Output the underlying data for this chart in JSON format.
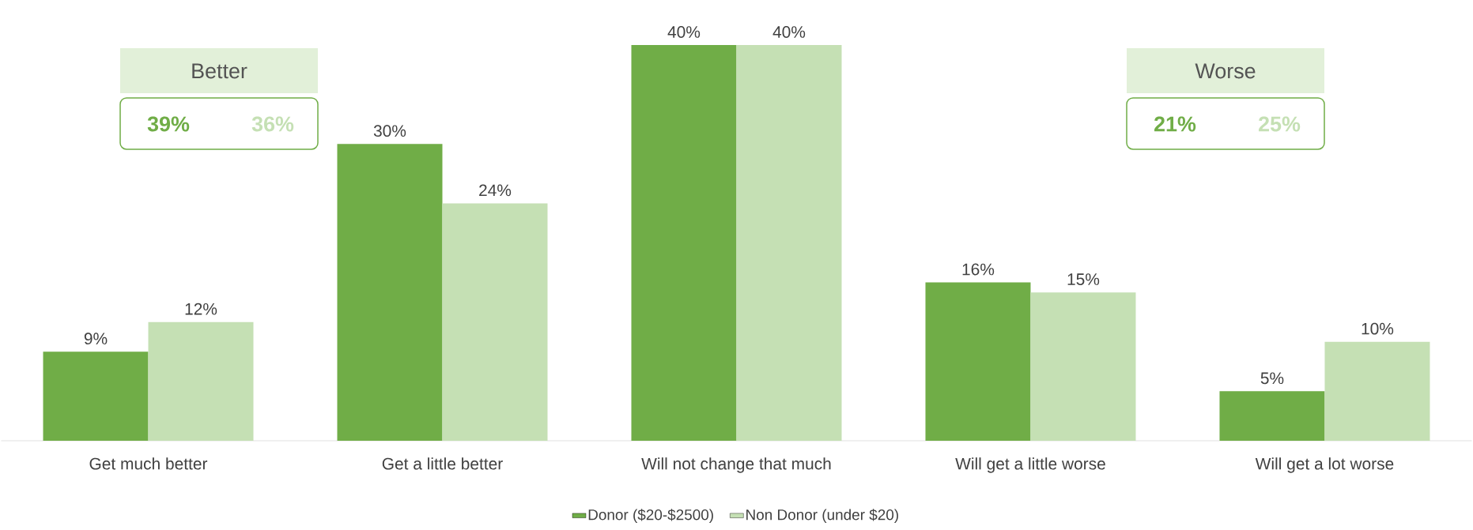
{
  "chart_data": {
    "type": "bar",
    "categories": [
      "Get much better",
      "Get a little better",
      "Will not change that much",
      "Will get a little worse",
      "Will get a lot worse"
    ],
    "series": [
      {
        "name": "Donor ($20-$2500)",
        "color": "#70ad47",
        "values": [
          9,
          30,
          40,
          16,
          5
        ],
        "value_labels": [
          "9%",
          "30%",
          "40%",
          "16%",
          "5%"
        ]
      },
      {
        "name": "Non Donor (under $20)",
        "color": "#c5e0b4",
        "values": [
          12,
          24,
          40,
          15,
          10
        ],
        "value_labels": [
          "12%",
          "24%",
          "40%",
          "15%",
          "10%"
        ]
      }
    ],
    "legend": "bottom",
    "annotations": [
      "Better",
      "39%",
      "36%",
      "Worse",
      "21%",
      "25%"
    ]
  }
}
